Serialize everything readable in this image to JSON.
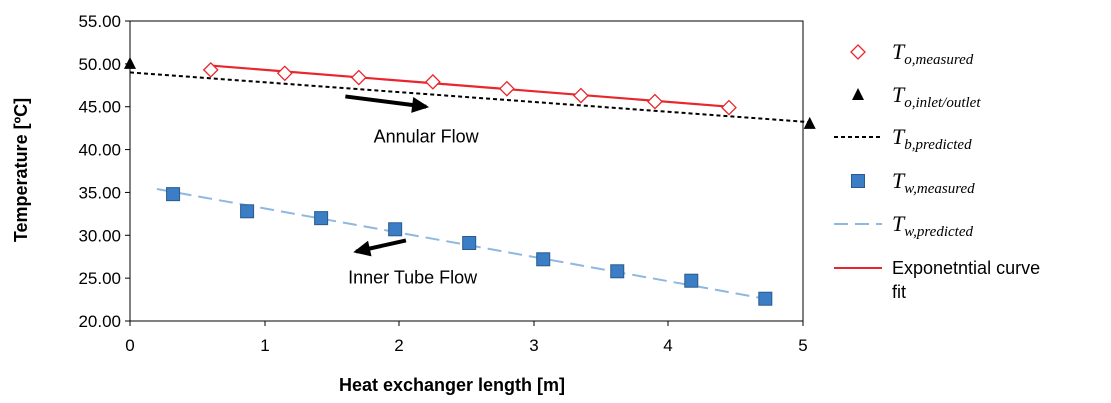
{
  "chart_data": {
    "type": "scatter",
    "xlabel": "Heat exchanger length [m]",
    "ylabel": "Temperature [ºC]",
    "xlim": [
      0,
      5
    ],
    "ylim": [
      20,
      55
    ],
    "x_ticks": [
      "0",
      "1",
      "2",
      "3",
      "4",
      "5"
    ],
    "y_ticks": [
      "20.00",
      "25.00",
      "30.00",
      "35.00",
      "40.00",
      "45.00",
      "50.00",
      "55.00"
    ],
    "grid": false,
    "legend_position": "right",
    "series": [
      {
        "name": "T_o,measured",
        "legend_main": "T",
        "legend_sub": "o,measured",
        "marker": "open-diamond",
        "color": "#e8262b",
        "x": [
          0.6,
          1.15,
          1.7,
          2.25,
          2.8,
          3.35,
          3.9,
          4.45
        ],
        "y": [
          49.3,
          48.9,
          48.4,
          47.9,
          47.1,
          46.3,
          45.6,
          44.9
        ]
      },
      {
        "name": "T_o,inlet/outlet",
        "legend_main": "T",
        "legend_sub": "o,inlet/outlet",
        "marker": "filled-triangle",
        "color": "#000000",
        "x": [
          0,
          5.05
        ],
        "y": [
          50.0,
          43.0
        ]
      },
      {
        "name": "T_b,predicted",
        "legend_main": "T",
        "legend_sub": "b,predicted",
        "line": "dotted",
        "color": "#000000",
        "x": [
          0,
          5.05
        ],
        "y": [
          49.0,
          43.2
        ]
      },
      {
        "name": "T_w,measured",
        "legend_main": "T",
        "legend_sub": "w,measured",
        "marker": "filled-square",
        "color": "#3b7ec6",
        "x": [
          0.32,
          0.87,
          1.42,
          1.97,
          2.52,
          3.07,
          3.62,
          4.17,
          4.72
        ],
        "y": [
          34.8,
          32.8,
          32.0,
          30.7,
          29.1,
          27.2,
          25.8,
          24.7,
          22.6
        ]
      },
      {
        "name": "T_w,predicted",
        "legend_main": "T",
        "legend_sub": "w,predicted",
        "line": "dashed",
        "color": "#8fb8e0",
        "x": [
          0.2,
          4.72
        ],
        "y": [
          35.4,
          22.6
        ]
      },
      {
        "name": "Exponetntial curve fit",
        "legend_main": "Exponetntial curve",
        "legend_line2": "fit",
        "line": "solid",
        "color": "#e8262b",
        "x": [
          0.6,
          4.45
        ],
        "y": [
          49.8,
          45.0
        ]
      }
    ],
    "annotations": [
      {
        "text": "Annular Flow",
        "x": 2.2,
        "y": 40.8,
        "arrow_from": [
          1.6,
          46.2
        ],
        "arrow_to": [
          2.2,
          45.0
        ]
      },
      {
        "text": "Inner Tube Flow",
        "x": 2.1,
        "y": 24.4,
        "arrow_from": [
          2.05,
          29.4
        ],
        "arrow_to": [
          1.68,
          28.1
        ]
      }
    ]
  }
}
